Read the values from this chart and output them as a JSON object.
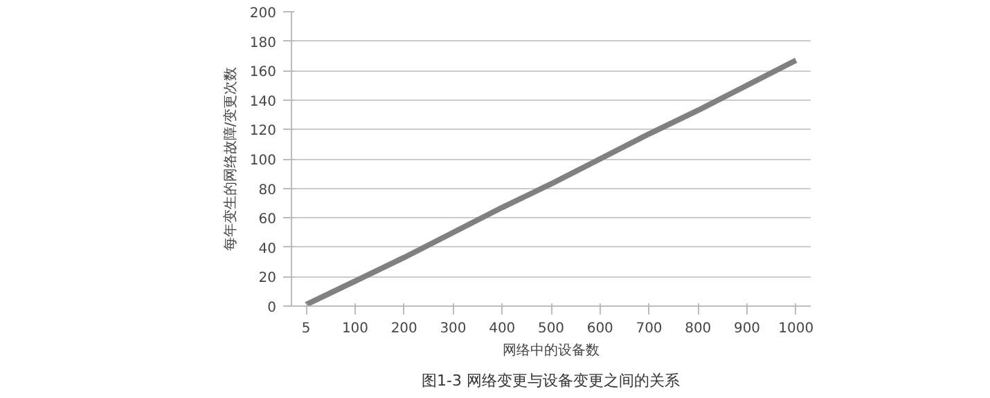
{
  "chart_data": {
    "type": "line",
    "ylabel": "每年变生的网络故障/变更次数",
    "xlabel": "网络中的设备数",
    "categories": [
      "5",
      "100",
      "200",
      "300",
      "400",
      "500",
      "600",
      "700",
      "800",
      "900",
      "1000"
    ],
    "series": [
      {
        "color": "#808080",
        "values": [
          1,
          17,
          33,
          50,
          67,
          83,
          100,
          117,
          133,
          150,
          167
        ]
      }
    ],
    "ylim": [
      0,
      200
    ],
    "yticks": [
      0,
      20,
      40,
      60,
      80,
      100,
      120,
      140,
      160,
      180,
      200
    ],
    "grid": "y",
    "annotations": [
      "图1-3 网络变更与设备变更之间的关系"
    ]
  }
}
